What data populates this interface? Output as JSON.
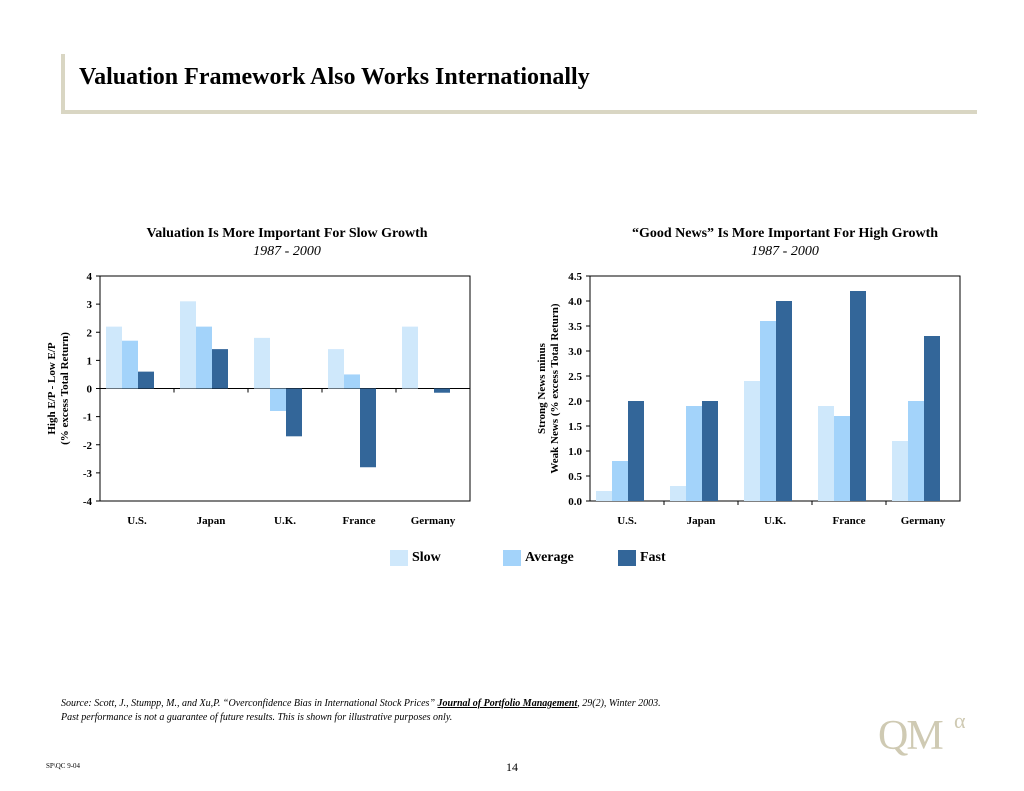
{
  "slide": {
    "title": "Valuation Framework Also Works Internationally",
    "footer_code": "SP\\QC 9-04",
    "page_number": "14"
  },
  "source": {
    "prefix": "Source: Scott, J., Stumpp, M., and Xu,P. “Overconfidence Bias in International Stock Prices” ",
    "journal": "Journal of Portfolio Management",
    "suffix": ", 29(2), Winter 2003.",
    "disclaimer": "Past performance is not a guarantee of future results. This is shown for illustrative purposes only."
  },
  "logo": {
    "text": "QM",
    "superscript": "α"
  },
  "legend": {
    "placement": "bottom-center",
    "items": [
      {
        "label": "Slow",
        "color": "#cfe8fb"
      },
      {
        "label": "Average",
        "color": "#a3d3fa"
      },
      {
        "label": "Fast",
        "color": "#336699"
      }
    ]
  },
  "chart_data": [
    {
      "type": "bar",
      "title": "Valuation Is More Important For Slow Growth",
      "subtitle": "1987 - 2000",
      "ylabel": "High E/P - Low E/P",
      "ylabel2": "(% excess Total Return)",
      "categories": [
        "U.S.",
        "Japan",
        "U.K.",
        "France",
        "Germany"
      ],
      "ylim": [
        -4,
        4
      ],
      "yticks": [
        4,
        3,
        2,
        1,
        0,
        -1,
        -2,
        -3,
        -4
      ],
      "ytick_labels": [
        "4",
        "3",
        "2",
        "1",
        "0",
        "-1",
        "-2",
        "-3",
        "-4"
      ],
      "grid": false,
      "series": [
        {
          "name": "Slow",
          "values": [
            2.2,
            3.1,
            1.8,
            1.4,
            2.2
          ]
        },
        {
          "name": "Average",
          "values": [
            1.7,
            2.2,
            -0.8,
            0.5,
            0
          ]
        },
        {
          "name": "Fast",
          "values": [
            0.6,
            1.4,
            -1.7,
            -2.8,
            -0.15
          ]
        }
      ]
    },
    {
      "type": "bar",
      "title": "“Good News” Is More Important For High Growth",
      "subtitle": "1987 - 2000",
      "ylabel": "Strong News minus",
      "ylabel2": "Weak News (% excess Total Return)",
      "categories": [
        "U.S.",
        "Japan",
        "U.K.",
        "France",
        "Germany"
      ],
      "ylim": [
        0,
        4.5
      ],
      "yticks": [
        4.5,
        4.0,
        3.5,
        3.0,
        2.5,
        2.0,
        1.5,
        1.0,
        0.5,
        0.0
      ],
      "ytick_labels": [
        "4.5",
        "4.0",
        "3.5",
        "3.0",
        "2.5",
        "2.0",
        "1.5",
        "1.0",
        "0.5",
        "0.0"
      ],
      "grid": false,
      "series": [
        {
          "name": "Slow",
          "values": [
            0.2,
            0.3,
            2.4,
            1.9,
            1.2
          ]
        },
        {
          "name": "Average",
          "values": [
            0.8,
            1.9,
            3.6,
            1.7,
            2.0
          ]
        },
        {
          "name": "Fast",
          "values": [
            2.0,
            2.0,
            4.0,
            4.2,
            3.3
          ]
        }
      ]
    }
  ]
}
